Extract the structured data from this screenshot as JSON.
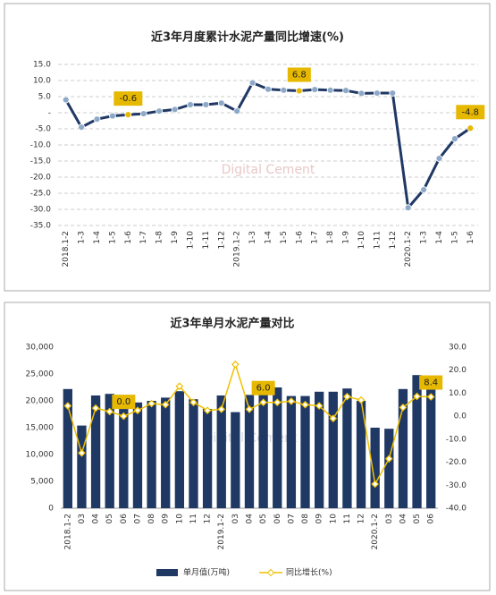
{
  "chart_data": [
    {
      "type": "line",
      "title": "近3年月度累计水泥产量同比增速(%)",
      "watermark": "Digital Cement",
      "categories": [
        "2018.1-2",
        "1-3",
        "1-4",
        "1-5",
        "1-6",
        "1-7",
        "1-8",
        "1-9",
        "1-10",
        "1-11",
        "1-12",
        "2019.1-2",
        "1-3",
        "1-4",
        "1-5",
        "1-6",
        "1-7",
        "1-8",
        "1-9",
        "1-10",
        "1-11",
        "1-12",
        "2020.1-2",
        "1-3",
        "1-4",
        "1-5",
        "1-6"
      ],
      "series": [
        {
          "name": "累计同比",
          "color": "#1f3864",
          "marker_color": "#8ea9c8",
          "values": [
            4.0,
            -4.5,
            -2.0,
            -1.0,
            -0.6,
            -0.3,
            0.5,
            1.0,
            2.5,
            2.5,
            3.0,
            0.5,
            9.3,
            7.3,
            7.0,
            6.8,
            7.2,
            7.0,
            6.9,
            6.0,
            6.1,
            6.1,
            -29.5,
            -23.9,
            -14.2,
            -8.1,
            -4.8
          ],
          "value_labels": [
            null,
            null,
            null,
            null,
            "-0.6",
            null,
            null,
            null,
            null,
            null,
            null,
            null,
            null,
            null,
            null,
            "6.8",
            null,
            null,
            null,
            null,
            null,
            null,
            null,
            null,
            null,
            null,
            "-4.8"
          ]
        }
      ],
      "label_color": "#e6b800",
      "ylim": [
        -35,
        15
      ],
      "yticks": [
        {
          "value": 15,
          "label": "15.0"
        },
        {
          "value": 10,
          "label": "10.0"
        },
        {
          "value": 5,
          "label": "5.0"
        },
        {
          "value": 0,
          "label": "-"
        },
        {
          "value": -5,
          "label": "-5.0"
        },
        {
          "value": -10,
          "label": "-10.0"
        },
        {
          "value": -15,
          "label": "-15.0"
        },
        {
          "value": -20,
          "label": "-20.0"
        },
        {
          "value": -25,
          "label": "-25.0"
        },
        {
          "value": -30,
          "label": "-30.0"
        },
        {
          "value": -35,
          "label": "-35.0"
        }
      ],
      "grid": true
    },
    {
      "type": "bar_line",
      "title": "近3年单月水泥产量对比",
      "watermark": "Digital Cement",
      "categories": [
        "2018.1-2",
        "03",
        "04",
        "05",
        "06",
        "07",
        "08",
        "09",
        "10",
        "11",
        "12",
        "2019.1-2",
        "03",
        "04",
        "05",
        "06",
        "07",
        "08",
        "09",
        "10",
        "11",
        "12",
        "2020.1-2",
        "03",
        "04",
        "05",
        "06"
      ],
      "series": [
        {
          "name": "单月值(万吨)",
          "color": "#1f3864",
          "values": [
            22200,
            15400,
            21000,
            21300,
            21000,
            19700,
            20000,
            20600,
            21800,
            20300,
            18500,
            21000,
            17900,
            21100,
            22700,
            22500,
            20900,
            20900,
            21700,
            21700,
            22300,
            20000,
            15000,
            14800,
            22200,
            24800,
            22900
          ]
        },
        {
          "name": "同比增长(%)",
          "color": "#f0c000",
          "axis": "y2",
          "values": [
            4.5,
            -16.0,
            3.5,
            2.0,
            0.0,
            2.5,
            5.5,
            5.0,
            13.0,
            6.0,
            2.5,
            3.0,
            22.5,
            3.0,
            6.0,
            6.0,
            6.5,
            5.0,
            4.5,
            -1.0,
            8.5,
            7.0,
            -29.5,
            -18.5,
            3.8,
            8.6,
            8.4
          ],
          "value_labels": [
            null,
            null,
            null,
            null,
            "0.0",
            null,
            null,
            null,
            null,
            null,
            null,
            null,
            null,
            null,
            "6.0",
            null,
            null,
            null,
            null,
            null,
            null,
            null,
            null,
            null,
            null,
            null,
            "8.4"
          ]
        }
      ],
      "label_color": "#e6b800",
      "ylim": [
        0,
        30000
      ],
      "yticks": [
        0,
        {
          "value": 5000,
          "label": "5,000"
        },
        {
          "value": 10000,
          "label": "10,000"
        },
        {
          "value": 15000,
          "label": "15,000"
        },
        {
          "value": 20000,
          "label": "20,000"
        },
        {
          "value": 25000,
          "label": "25,000"
        },
        {
          "value": 30000,
          "label": "30,000"
        }
      ],
      "y2lim": [
        -40,
        30
      ],
      "y2ticks": [
        {
          "value": 30,
          "label": "30.0"
        },
        {
          "value": 20,
          "label": "20.0"
        },
        {
          "value": 10,
          "label": "10.0"
        },
        {
          "value": 0,
          "label": "0.0"
        },
        {
          "value": -10,
          "label": "-10.0"
        },
        {
          "value": -20,
          "label": "-20.0"
        },
        {
          "value": -30,
          "label": "-30.0"
        },
        {
          "value": -40,
          "label": "-40.0"
        }
      ],
      "grid": false
    }
  ]
}
